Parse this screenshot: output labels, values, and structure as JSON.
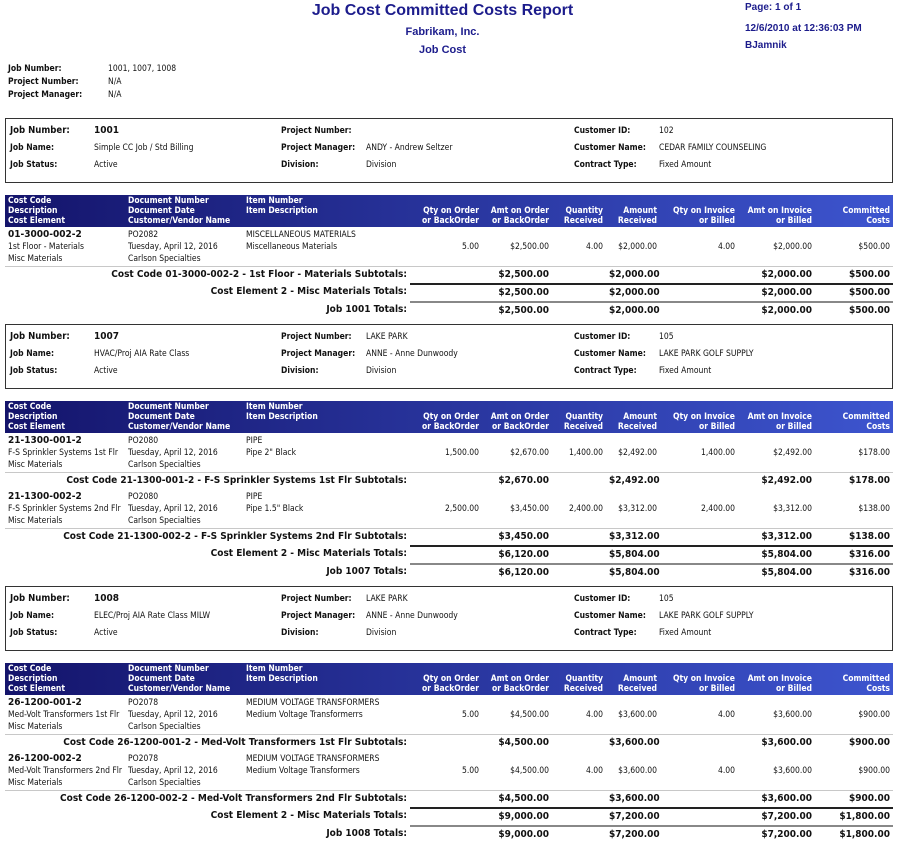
{
  "header": {
    "title": "Job Cost Committed Costs Report",
    "company": "Fabrikam, Inc.",
    "module": "Job Cost",
    "page": "Page: 1 of 1",
    "datetime": "12/6/2010 at 12:36:03 PM",
    "user": "BJamnik"
  },
  "filters": [
    {
      "label": "Job Number:",
      "value": "1001, 1007, 1008"
    },
    {
      "label": "Project Number:",
      "value": "N/A"
    },
    {
      "label": "Project Manager:",
      "value": "N/A"
    }
  ],
  "info_labels": {
    "job_number": "Job Number:",
    "job_name": "Job Name:",
    "job_status": "Job Status:",
    "project_number": "Project Number:",
    "project_manager": "Project Manager:",
    "division": "Division:",
    "customer_id": "Customer ID:",
    "customer_name": "Customer Name:",
    "contract_type": "Contract Type:"
  },
  "columns": {
    "c1": [
      "Cost Code",
      "Description",
      "Cost Element"
    ],
    "c2": [
      "Document Number",
      "Document Date",
      "Customer/Vendor Name"
    ],
    "c3": [
      "Item Number",
      "Item Description"
    ],
    "qty_order": [
      "Qty on Order",
      "or BackOrder"
    ],
    "amt_order": [
      "Amt on Order",
      "or BackOrder"
    ],
    "qty_received": [
      "Quantity",
      "Received"
    ],
    "amt_received": [
      "Amount",
      "Received"
    ],
    "qty_invoice": [
      "Qty on Invoice",
      "or Billed"
    ],
    "amt_invoice": [
      "Amt on Invoice",
      "or Billed"
    ],
    "committed": [
      "Committed",
      "Costs"
    ]
  },
  "jobs": [
    {
      "info": {
        "job_number": "1001",
        "job_name": "Simple CC Job / Std Billing",
        "job_status": "Active",
        "project_number": "",
        "project_manager": "ANDY - Andrew Seltzer",
        "division": "Division",
        "customer_id": "102",
        "customer_name": "CEDAR FAMILY COUNSELING",
        "contract_type": "Fixed Amount"
      },
      "cost_codes": [
        {
          "code": "01-3000-002-2",
          "description": "1st Floor - Materials",
          "element": "Misc Materials",
          "doc_number": "PO2082",
          "doc_date": "Tuesday, April 12, 2016",
          "vendor": "Carlson Specialties",
          "item_number": "MISCELLANEOUS MATERIALS",
          "item_description": "Miscellaneous Materials",
          "qty_order": "5.00",
          "amt_order": "$2,500.00",
          "qty_received": "4.00",
          "amt_received": "$2,000.00",
          "qty_invoice": "4.00",
          "amt_invoice": "$2,000.00",
          "committed": "$500.00",
          "subtotal": {
            "label": "Cost Code 01-3000-002-2 - 1st Floor - Materials Subtotals:",
            "amt_order": "$2,500.00",
            "amt_received": "$2,000.00",
            "amt_invoice": "$2,000.00",
            "committed": "$500.00"
          }
        }
      ],
      "element_totals": {
        "label": "Cost Element 2 - Misc Materials Totals:",
        "amt_order": "$2,500.00",
        "amt_received": "$2,000.00",
        "amt_invoice": "$2,000.00",
        "committed": "$500.00"
      },
      "job_totals": {
        "label": "Job 1001 Totals:",
        "amt_order": "$2,500.00",
        "amt_received": "$2,000.00",
        "amt_invoice": "$2,000.00",
        "committed": "$500.00"
      }
    },
    {
      "info": {
        "job_number": "1007",
        "job_name": "HVAC/Proj AIA Rate Class",
        "job_status": "Active",
        "project_number": "LAKE PARK",
        "project_manager": "ANNE - Anne Dunwoody",
        "division": "Division",
        "customer_id": "105",
        "customer_name": "LAKE PARK GOLF SUPPLY",
        "contract_type": "Fixed Amount"
      },
      "cost_codes": [
        {
          "code": "21-1300-001-2",
          "description": "F-S Sprinkler Systems 1st Flr",
          "element": "Misc Materials",
          "doc_number": "PO2080",
          "doc_date": "Tuesday, April 12, 2016",
          "vendor": "Carlson Specialties",
          "item_number": "PIPE",
          "item_description": "Pipe 2\" Black",
          "qty_order": "1,500.00",
          "amt_order": "$2,670.00",
          "qty_received": "1,400.00",
          "amt_received": "$2,492.00",
          "qty_invoice": "1,400.00",
          "amt_invoice": "$2,492.00",
          "committed": "$178.00",
          "subtotal": {
            "label": "Cost Code 21-1300-001-2 - F-S Sprinkler Systems 1st Flr Subtotals:",
            "amt_order": "$2,670.00",
            "amt_received": "$2,492.00",
            "amt_invoice": "$2,492.00",
            "committed": "$178.00"
          }
        },
        {
          "code": "21-1300-002-2",
          "description": "F-S Sprinkler Systems 2nd Flr",
          "element": "Misc Materials",
          "doc_number": "PO2080",
          "doc_date": "Tuesday, April 12, 2016",
          "vendor": "Carlson Specialties",
          "item_number": "PIPE",
          "item_description": "Pipe 1.5\" Black",
          "qty_order": "2,500.00",
          "amt_order": "$3,450.00",
          "qty_received": "2,400.00",
          "amt_received": "$3,312.00",
          "qty_invoice": "2,400.00",
          "amt_invoice": "$3,312.00",
          "committed": "$138.00",
          "subtotal": {
            "label": "Cost Code 21-1300-002-2 - F-S Sprinkler Systems 2nd Flr Subtotals:",
            "amt_order": "$3,450.00",
            "amt_received": "$3,312.00",
            "amt_invoice": "$3,312.00",
            "committed": "$138.00"
          }
        }
      ],
      "element_totals": {
        "label": "Cost Element 2 - Misc Materials Totals:",
        "amt_order": "$6,120.00",
        "amt_received": "$5,804.00",
        "amt_invoice": "$5,804.00",
        "committed": "$316.00"
      },
      "job_totals": {
        "label": "Job 1007 Totals:",
        "amt_order": "$6,120.00",
        "amt_received": "$5,804.00",
        "amt_invoice": "$5,804.00",
        "committed": "$316.00"
      }
    },
    {
      "info": {
        "job_number": "1008",
        "job_name": "ELEC/Proj AIA Rate Class MILW",
        "job_status": "Active",
        "project_number": "LAKE PARK",
        "project_manager": "ANNE - Anne Dunwoody",
        "division": "Division",
        "customer_id": "105",
        "customer_name": "LAKE PARK GOLF SUPPLY",
        "contract_type": "Fixed Amount"
      },
      "cost_codes": [
        {
          "code": "26-1200-001-2",
          "description": "Med-Volt Transformers 1st Flr",
          "element": "Misc Materials",
          "doc_number": "PO2078",
          "doc_date": "Tuesday, April 12, 2016",
          "vendor": "Carlson Specialties",
          "item_number": "MEDIUM VOLTAGE TRANSFORMERS",
          "item_description": "Medium Voltage Transformerrs",
          "qty_order": "5.00",
          "amt_order": "$4,500.00",
          "qty_received": "4.00",
          "amt_received": "$3,600.00",
          "qty_invoice": "4.00",
          "amt_invoice": "$3,600.00",
          "committed": "$900.00",
          "subtotal": {
            "label": "Cost Code 26-1200-001-2 - Med-Volt Transformers 1st Flr Subtotals:",
            "amt_order": "$4,500.00",
            "amt_received": "$3,600.00",
            "amt_invoice": "$3,600.00",
            "committed": "$900.00"
          }
        },
        {
          "code": "26-1200-002-2",
          "description": "Med-Volt Transformers 2nd Flr",
          "element": "Misc Materials",
          "doc_number": "PO2078",
          "doc_date": "Tuesday, April 12, 2016",
          "vendor": "Carlson Specialties",
          "item_number": "MEDIUM VOLTAGE TRANSFORMERS",
          "item_description": "Medium Voltage Transformers",
          "qty_order": "5.00",
          "amt_order": "$4,500.00",
          "qty_received": "4.00",
          "amt_received": "$3,600.00",
          "qty_invoice": "4.00",
          "amt_invoice": "$3,600.00",
          "committed": "$900.00",
          "subtotal": {
            "label": "Cost Code 26-1200-002-2 - Med-Volt Transformers 2nd Flr Subtotals:",
            "amt_order": "$4,500.00",
            "amt_received": "$3,600.00",
            "amt_invoice": "$3,600.00",
            "committed": "$900.00"
          }
        }
      ],
      "element_totals": {
        "label": "Cost Element 2 - Misc Materials Totals:",
        "amt_order": "$9,000.00",
        "amt_received": "$7,200.00",
        "amt_invoice": "$7,200.00",
        "committed": "$1,800.00"
      },
      "job_totals": {
        "label": "Job 1008 Totals:",
        "amt_order": "$9,000.00",
        "amt_received": "$7,200.00",
        "amt_invoice": "$7,200.00",
        "committed": "$1,800.00"
      }
    }
  ]
}
